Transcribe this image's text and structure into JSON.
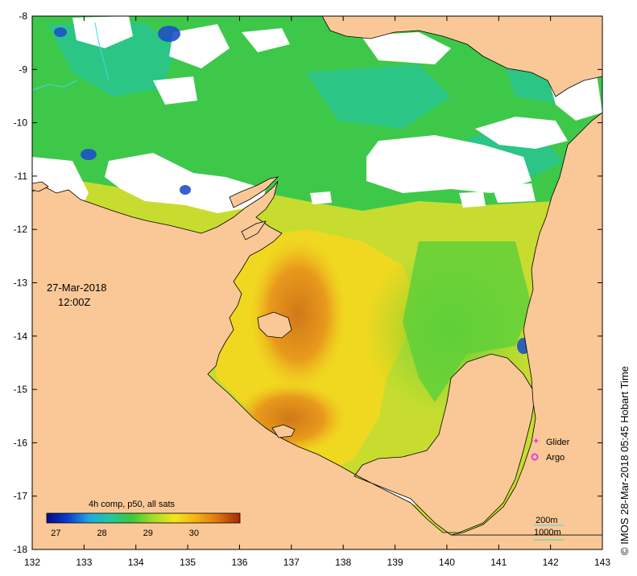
{
  "map": {
    "date": "27-Mar-2018",
    "time": "12:00Z",
    "x_ticks": [
      "132",
      "133",
      "134",
      "135",
      "136",
      "137",
      "138",
      "139",
      "140",
      "141",
      "142",
      "143"
    ],
    "y_ticks": [
      "-8",
      "-9",
      "-10",
      "-11",
      "-12",
      "-13",
      "-14",
      "-15",
      "-16",
      "-17",
      "-18"
    ],
    "lon_range": [
      132,
      143
    ],
    "lat_range": [
      -18,
      -8
    ],
    "credit": "© IMOS 28-Mar-2018 05:45 Hobart Time",
    "land_color": "#f9c896",
    "cloud_color": "#ffffff"
  },
  "colorbar": {
    "title": "4h comp, p50, all sats",
    "ticks": [
      "27",
      "28",
      "29",
      "30"
    ],
    "tick_values": [
      27,
      28,
      29,
      30
    ],
    "range": [
      26.8,
      31.0
    ],
    "colors": [
      "#08088a",
      "#0a3fd0",
      "#1fa8e0",
      "#22c9a0",
      "#3cc83c",
      "#a4dc28",
      "#f0e61e",
      "#f5b414",
      "#e07810",
      "#a82808"
    ]
  },
  "legend": {
    "glider_label": "Glider",
    "argo_label": "Argo",
    "glider_color": "#e040e0",
    "argo_color": "#e040e0"
  },
  "isobaths": {
    "label_200": "200m",
    "label_1000": "1000m",
    "color_200": "#40d8e8",
    "color_1000": "#40d8a0"
  }
}
